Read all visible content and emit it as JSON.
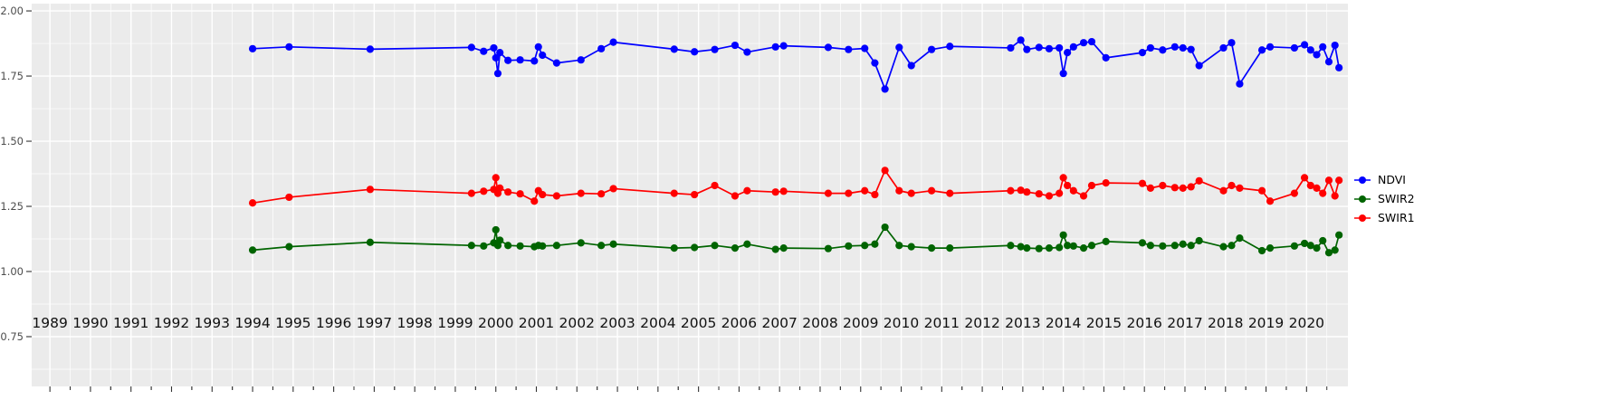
{
  "chart_data": {
    "type": "line",
    "title": "",
    "xlabel": "",
    "ylabel": "",
    "grid": true,
    "legend_position": "right",
    "panel_bg": "#EBEBEB",
    "grid_color": "#FFFFFF",
    "tick_color": "#333333",
    "y_axis_text_color": "#4D4D4D",
    "x_axis_text_color": "#111111",
    "x_range": [
      1988.55,
      2021.02
    ],
    "y_range": [
      0.559,
      2.028
    ],
    "x_ticks": {
      "values": [
        1989,
        1990,
        1991,
        1992,
        1993,
        1994,
        1995,
        1996,
        1997,
        1998,
        1999,
        2000,
        2001,
        2002,
        2003,
        2004,
        2005,
        2006,
        2007,
        2008,
        2009,
        2010,
        2011,
        2012,
        2013,
        2014,
        2015,
        2016,
        2017,
        2018,
        2019,
        2020
      ],
      "labels": [
        "1989",
        "1990",
        "1991",
        "1992",
        "1993",
        "1994",
        "1995",
        "1996",
        "1997",
        "1998",
        "1999",
        "2000",
        "2001",
        "2002",
        "2003",
        "2004",
        "2005",
        "2006",
        "2007",
        "2008",
        "2009",
        "2010",
        "2011",
        "2012",
        "2013",
        "2014",
        "2015",
        "2016",
        "2017",
        "2018",
        "2019",
        "2020"
      ]
    },
    "y_ticks": {
      "values": [
        2.0,
        1.75,
        1.5,
        1.25,
        1.0,
        0.75
      ],
      "labels": [
        "2.00",
        "1.75",
        "1.50",
        "1.25",
        "1.00",
        "0.75"
      ]
    },
    "x": [
      1994.0,
      1994.9,
      1996.9,
      1999.4,
      1999.7,
      1999.95,
      2000.0,
      2000.05,
      2000.1,
      2000.3,
      2000.6,
      2000.95,
      2001.05,
      2001.15,
      2001.5,
      2002.1,
      2002.6,
      2002.9,
      2004.4,
      2004.9,
      2005.4,
      2005.9,
      2006.2,
      2006.9,
      2007.1,
      2008.2,
      2008.7,
      2009.1,
      2009.35,
      2009.6,
      2009.95,
      2010.25,
      2010.75,
      2011.2,
      2012.7,
      2012.95,
      2013.1,
      2013.4,
      2013.65,
      2013.9,
      2014.0,
      2014.1,
      2014.25,
      2014.5,
      2014.7,
      2015.05,
      2015.95,
      2016.15,
      2016.45,
      2016.75,
      2016.95,
      2017.15,
      2017.35,
      2017.95,
      2018.15,
      2018.35,
      2018.9,
      2019.1,
      2019.7,
      2019.95,
      2020.1,
      2020.25,
      2020.4,
      2020.55,
      2020.7,
      2020.8
    ],
    "series": [
      {
        "name": "NDVI",
        "color": "#0000FF",
        "values": [
          1.855,
          1.862,
          1.853,
          1.86,
          1.845,
          1.858,
          1.82,
          1.76,
          1.84,
          1.81,
          1.812,
          1.808,
          1.862,
          1.83,
          1.8,
          1.812,
          1.855,
          1.88,
          1.853,
          1.843,
          1.852,
          1.868,
          1.842,
          1.862,
          1.866,
          1.86,
          1.852,
          1.856,
          1.8,
          1.7,
          1.86,
          1.79,
          1.852,
          1.864,
          1.858,
          1.888,
          1.852,
          1.86,
          1.855,
          1.858,
          1.76,
          1.84,
          1.862,
          1.878,
          1.882,
          1.82,
          1.84,
          1.858,
          1.85,
          1.862,
          1.858,
          1.852,
          1.79,
          1.858,
          1.878,
          1.72,
          1.85,
          1.862,
          1.858,
          1.87,
          1.85,
          1.832,
          1.862,
          1.805,
          1.868,
          1.782
        ]
      },
      {
        "name": "SWIR2",
        "color": "#006400",
        "values": [
          1.082,
          1.095,
          1.112,
          1.1,
          1.098,
          1.11,
          1.16,
          1.1,
          1.12,
          1.1,
          1.098,
          1.095,
          1.1,
          1.098,
          1.1,
          1.11,
          1.1,
          1.105,
          1.09,
          1.092,
          1.1,
          1.09,
          1.105,
          1.085,
          1.09,
          1.088,
          1.098,
          1.1,
          1.105,
          1.17,
          1.1,
          1.095,
          1.09,
          1.09,
          1.1,
          1.095,
          1.09,
          1.088,
          1.09,
          1.092,
          1.14,
          1.1,
          1.098,
          1.09,
          1.1,
          1.115,
          1.11,
          1.1,
          1.098,
          1.1,
          1.105,
          1.1,
          1.118,
          1.095,
          1.1,
          1.128,
          1.08,
          1.09,
          1.098,
          1.108,
          1.1,
          1.09,
          1.118,
          1.072,
          1.082,
          1.14
        ]
      },
      {
        "name": "SWIR1",
        "color": "#FF0000",
        "values": [
          1.263,
          1.285,
          1.315,
          1.3,
          1.308,
          1.315,
          1.36,
          1.3,
          1.32,
          1.305,
          1.298,
          1.27,
          1.31,
          1.295,
          1.29,
          1.3,
          1.298,
          1.318,
          1.3,
          1.295,
          1.33,
          1.29,
          1.31,
          1.305,
          1.308,
          1.3,
          1.3,
          1.31,
          1.295,
          1.388,
          1.31,
          1.3,
          1.31,
          1.3,
          1.31,
          1.312,
          1.305,
          1.298,
          1.29,
          1.3,
          1.36,
          1.33,
          1.31,
          1.29,
          1.33,
          1.34,
          1.338,
          1.32,
          1.33,
          1.322,
          1.32,
          1.325,
          1.348,
          1.31,
          1.33,
          1.32,
          1.31,
          1.27,
          1.3,
          1.36,
          1.33,
          1.32,
          1.3,
          1.35,
          1.29,
          1.35
        ]
      }
    ],
    "legend_entries": [
      "NDVI",
      "SWIR2",
      "SWIR1"
    ]
  }
}
